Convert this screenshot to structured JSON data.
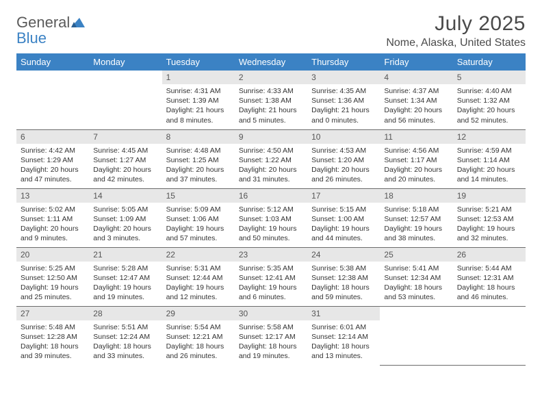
{
  "brand": {
    "part1": "General",
    "part2": "Blue"
  },
  "title": "July 2025",
  "location": "Nome, Alaska, United States",
  "colors": {
    "header_bg": "#3b82c4",
    "header_text": "#ffffff",
    "daynum_bg": "#e7e7e7",
    "text": "#333333",
    "border": "#6b6b6b",
    "background": "#ffffff"
  },
  "weekdays": [
    "Sunday",
    "Monday",
    "Tuesday",
    "Wednesday",
    "Thursday",
    "Friday",
    "Saturday"
  ],
  "weeks": [
    [
      null,
      null,
      {
        "num": "1",
        "sunrise": "Sunrise: 4:31 AM",
        "sunset": "Sunset: 1:39 AM",
        "daylight": "Daylight: 21 hours and 8 minutes."
      },
      {
        "num": "2",
        "sunrise": "Sunrise: 4:33 AM",
        "sunset": "Sunset: 1:38 AM",
        "daylight": "Daylight: 21 hours and 5 minutes."
      },
      {
        "num": "3",
        "sunrise": "Sunrise: 4:35 AM",
        "sunset": "Sunset: 1:36 AM",
        "daylight": "Daylight: 21 hours and 0 minutes."
      },
      {
        "num": "4",
        "sunrise": "Sunrise: 4:37 AM",
        "sunset": "Sunset: 1:34 AM",
        "daylight": "Daylight: 20 hours and 56 minutes."
      },
      {
        "num": "5",
        "sunrise": "Sunrise: 4:40 AM",
        "sunset": "Sunset: 1:32 AM",
        "daylight": "Daylight: 20 hours and 52 minutes."
      }
    ],
    [
      {
        "num": "6",
        "sunrise": "Sunrise: 4:42 AM",
        "sunset": "Sunset: 1:29 AM",
        "daylight": "Daylight: 20 hours and 47 minutes."
      },
      {
        "num": "7",
        "sunrise": "Sunrise: 4:45 AM",
        "sunset": "Sunset: 1:27 AM",
        "daylight": "Daylight: 20 hours and 42 minutes."
      },
      {
        "num": "8",
        "sunrise": "Sunrise: 4:48 AM",
        "sunset": "Sunset: 1:25 AM",
        "daylight": "Daylight: 20 hours and 37 minutes."
      },
      {
        "num": "9",
        "sunrise": "Sunrise: 4:50 AM",
        "sunset": "Sunset: 1:22 AM",
        "daylight": "Daylight: 20 hours and 31 minutes."
      },
      {
        "num": "10",
        "sunrise": "Sunrise: 4:53 AM",
        "sunset": "Sunset: 1:20 AM",
        "daylight": "Daylight: 20 hours and 26 minutes."
      },
      {
        "num": "11",
        "sunrise": "Sunrise: 4:56 AM",
        "sunset": "Sunset: 1:17 AM",
        "daylight": "Daylight: 20 hours and 20 minutes."
      },
      {
        "num": "12",
        "sunrise": "Sunrise: 4:59 AM",
        "sunset": "Sunset: 1:14 AM",
        "daylight": "Daylight: 20 hours and 14 minutes."
      }
    ],
    [
      {
        "num": "13",
        "sunrise": "Sunrise: 5:02 AM",
        "sunset": "Sunset: 1:11 AM",
        "daylight": "Daylight: 20 hours and 9 minutes."
      },
      {
        "num": "14",
        "sunrise": "Sunrise: 5:05 AM",
        "sunset": "Sunset: 1:09 AM",
        "daylight": "Daylight: 20 hours and 3 minutes."
      },
      {
        "num": "15",
        "sunrise": "Sunrise: 5:09 AM",
        "sunset": "Sunset: 1:06 AM",
        "daylight": "Daylight: 19 hours and 57 minutes."
      },
      {
        "num": "16",
        "sunrise": "Sunrise: 5:12 AM",
        "sunset": "Sunset: 1:03 AM",
        "daylight": "Daylight: 19 hours and 50 minutes."
      },
      {
        "num": "17",
        "sunrise": "Sunrise: 5:15 AM",
        "sunset": "Sunset: 1:00 AM",
        "daylight": "Daylight: 19 hours and 44 minutes."
      },
      {
        "num": "18",
        "sunrise": "Sunrise: 5:18 AM",
        "sunset": "Sunset: 12:57 AM",
        "daylight": "Daylight: 19 hours and 38 minutes."
      },
      {
        "num": "19",
        "sunrise": "Sunrise: 5:21 AM",
        "sunset": "Sunset: 12:53 AM",
        "daylight": "Daylight: 19 hours and 32 minutes."
      }
    ],
    [
      {
        "num": "20",
        "sunrise": "Sunrise: 5:25 AM",
        "sunset": "Sunset: 12:50 AM",
        "daylight": "Daylight: 19 hours and 25 minutes."
      },
      {
        "num": "21",
        "sunrise": "Sunrise: 5:28 AM",
        "sunset": "Sunset: 12:47 AM",
        "daylight": "Daylight: 19 hours and 19 minutes."
      },
      {
        "num": "22",
        "sunrise": "Sunrise: 5:31 AM",
        "sunset": "Sunset: 12:44 AM",
        "daylight": "Daylight: 19 hours and 12 minutes."
      },
      {
        "num": "23",
        "sunrise": "Sunrise: 5:35 AM",
        "sunset": "Sunset: 12:41 AM",
        "daylight": "Daylight: 19 hours and 6 minutes."
      },
      {
        "num": "24",
        "sunrise": "Sunrise: 5:38 AM",
        "sunset": "Sunset: 12:38 AM",
        "daylight": "Daylight: 18 hours and 59 minutes."
      },
      {
        "num": "25",
        "sunrise": "Sunrise: 5:41 AM",
        "sunset": "Sunset: 12:34 AM",
        "daylight": "Daylight: 18 hours and 53 minutes."
      },
      {
        "num": "26",
        "sunrise": "Sunrise: 5:44 AM",
        "sunset": "Sunset: 12:31 AM",
        "daylight": "Daylight: 18 hours and 46 minutes."
      }
    ],
    [
      {
        "num": "27",
        "sunrise": "Sunrise: 5:48 AM",
        "sunset": "Sunset: 12:28 AM",
        "daylight": "Daylight: 18 hours and 39 minutes."
      },
      {
        "num": "28",
        "sunrise": "Sunrise: 5:51 AM",
        "sunset": "Sunset: 12:24 AM",
        "daylight": "Daylight: 18 hours and 33 minutes."
      },
      {
        "num": "29",
        "sunrise": "Sunrise: 5:54 AM",
        "sunset": "Sunset: 12:21 AM",
        "daylight": "Daylight: 18 hours and 26 minutes."
      },
      {
        "num": "30",
        "sunrise": "Sunrise: 5:58 AM",
        "sunset": "Sunset: 12:17 AM",
        "daylight": "Daylight: 18 hours and 19 minutes."
      },
      {
        "num": "31",
        "sunrise": "Sunrise: 6:01 AM",
        "sunset": "Sunset: 12:14 AM",
        "daylight": "Daylight: 18 hours and 13 minutes."
      },
      null,
      null
    ]
  ]
}
